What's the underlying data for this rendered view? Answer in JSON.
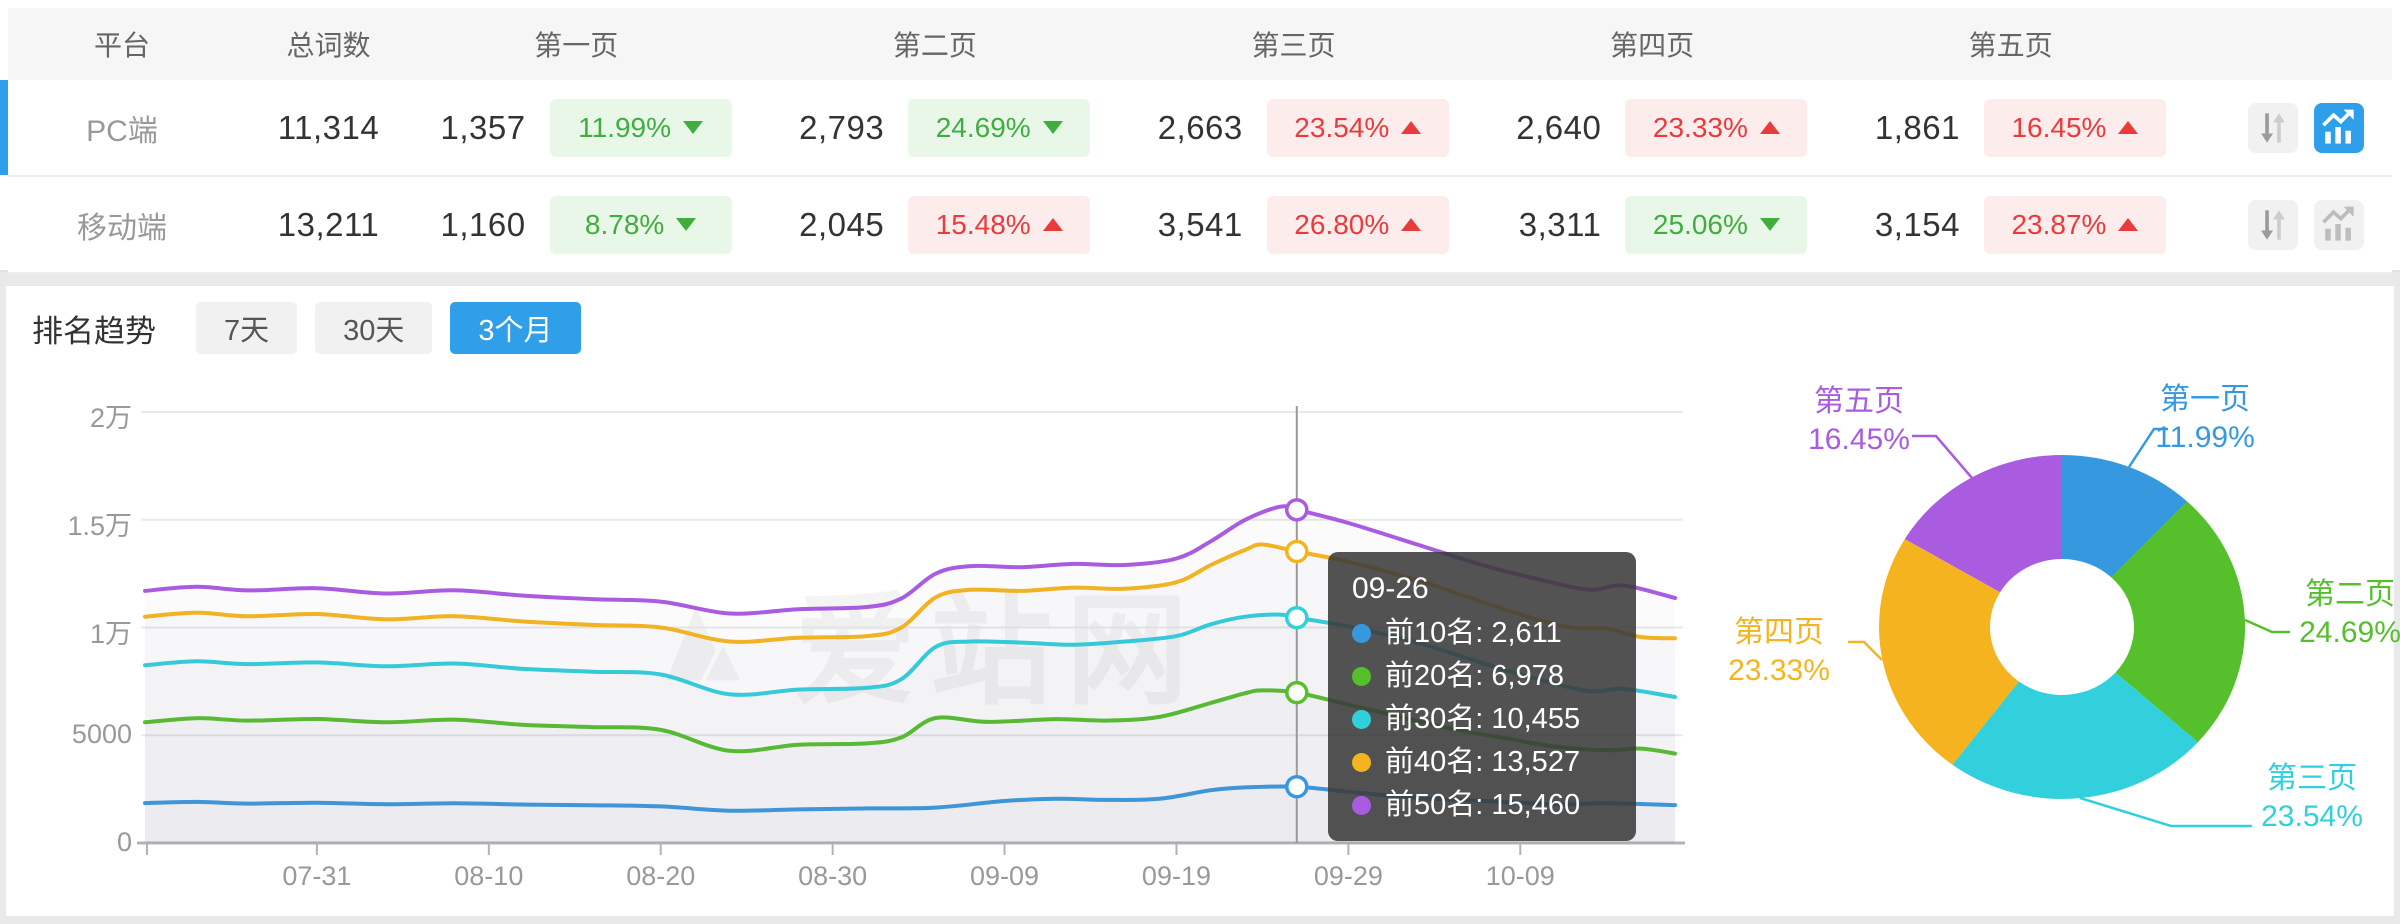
{
  "table": {
    "headers": {
      "platform": "平台",
      "total": "总词数",
      "pages": [
        "第一页",
        "第二页",
        "第三页",
        "第四页",
        "第五页"
      ]
    },
    "rows": [
      {
        "platform": "PC端",
        "total": "11,314",
        "selected": true,
        "pages": [
          {
            "count": "1,357",
            "pct": "11.99%",
            "dir": "down",
            "tone": "green"
          },
          {
            "count": "2,793",
            "pct": "24.69%",
            "dir": "down",
            "tone": "green"
          },
          {
            "count": "2,663",
            "pct": "23.54%",
            "dir": "up",
            "tone": "red"
          },
          {
            "count": "2,640",
            "pct": "23.33%",
            "dir": "up",
            "tone": "red"
          },
          {
            "count": "1,861",
            "pct": "16.45%",
            "dir": "up",
            "tone": "red"
          }
        ],
        "actions": {
          "sort_active": false,
          "chart_active": true
        }
      },
      {
        "platform": "移动端",
        "total": "13,211",
        "selected": false,
        "pages": [
          {
            "count": "1,160",
            "pct": "8.78%",
            "dir": "down",
            "tone": "green"
          },
          {
            "count": "2,045",
            "pct": "15.48%",
            "dir": "up",
            "tone": "red"
          },
          {
            "count": "3,541",
            "pct": "26.80%",
            "dir": "up",
            "tone": "red"
          },
          {
            "count": "3,311",
            "pct": "25.06%",
            "dir": "down",
            "tone": "green"
          },
          {
            "count": "3,154",
            "pct": "23.87%",
            "dir": "up",
            "tone": "red"
          }
        ],
        "actions": {
          "sort_active": false,
          "chart_active": false
        }
      }
    ]
  },
  "trend": {
    "title": "排名趋势",
    "tabs": [
      {
        "label": "7天",
        "active": false
      },
      {
        "label": "30天",
        "active": false
      },
      {
        "label": "3个月",
        "active": true
      }
    ]
  },
  "watermark": "爱站网",
  "tooltip": {
    "date": "09-26",
    "entries": [
      {
        "label": "前10名",
        "value": "2,611"
      },
      {
        "label": "前20名",
        "value": "6,978"
      },
      {
        "label": "前30名",
        "value": "10,455"
      },
      {
        "label": "前40名",
        "value": "13,527"
      },
      {
        "label": "前50名",
        "value": "15,460"
      }
    ]
  },
  "colors": {
    "accent_blue": "#2e9fe8",
    "series": [
      "#3699e0",
      "#55bf2c",
      "#32cfdd",
      "#f5b41f",
      "#a95ce0"
    ],
    "badge_green_text": "#3fae3f",
    "badge_green_bg": "#e9f7e9",
    "badge_red_text": "#e83c3c",
    "badge_red_bg": "#fdecec"
  },
  "chart_data": [
    {
      "type": "line",
      "title": "排名趋势 3个月",
      "x_start": "07-21",
      "days_total": 89,
      "x_ticks": [
        {
          "day": 10,
          "label": "07-31"
        },
        {
          "day": 20,
          "label": "08-10"
        },
        {
          "day": 30,
          "label": "08-20"
        },
        {
          "day": 40,
          "label": "08-30"
        },
        {
          "day": 50,
          "label": "09-09"
        },
        {
          "day": 60,
          "label": "09-19"
        },
        {
          "day": 70,
          "label": "09-29"
        },
        {
          "day": 80,
          "label": "10-09"
        }
      ],
      "ylim": [
        0,
        20000
      ],
      "y_ticks": [
        {
          "value": 0,
          "label": "0"
        },
        {
          "value": 5000,
          "label": "5000"
        },
        {
          "value": 10000,
          "label": "1万"
        },
        {
          "value": 15000,
          "label": "1.5万"
        },
        {
          "value": 20000,
          "label": "2万"
        }
      ],
      "grid": true,
      "highlight": {
        "day": 67,
        "date": "09-26",
        "values": [
          2611,
          6978,
          10455,
          13527,
          15460
        ]
      },
      "series": [
        {
          "name": "前10名",
          "color": "#3699e0",
          "points": [
            [
              0,
              1850
            ],
            [
              3,
              1905
            ],
            [
              6,
              1830
            ],
            [
              10,
              1870
            ],
            [
              14,
              1800
            ],
            [
              18,
              1845
            ],
            [
              22,
              1785
            ],
            [
              26,
              1755
            ],
            [
              30,
              1700
            ],
            [
              34,
              1500
            ],
            [
              38,
              1560
            ],
            [
              42,
              1605
            ],
            [
              46,
              1645
            ],
            [
              50,
              1950
            ],
            [
              53,
              2050
            ],
            [
              56,
              2000
            ],
            [
              59,
              2050
            ],
            [
              62,
              2450
            ],
            [
              64,
              2580
            ],
            [
              67,
              2611
            ],
            [
              70,
              2380
            ],
            [
              74,
              2100
            ],
            [
              78,
              1950
            ],
            [
              82,
              1790
            ],
            [
              85,
              1845
            ],
            [
              89,
              1760
            ]
          ]
        },
        {
          "name": "前20名",
          "color": "#55bf2c",
          "points": [
            [
              0,
              5600
            ],
            [
              3,
              5790
            ],
            [
              6,
              5680
            ],
            [
              10,
              5755
            ],
            [
              14,
              5600
            ],
            [
              18,
              5725
            ],
            [
              22,
              5480
            ],
            [
              26,
              5380
            ],
            [
              30,
              5250
            ],
            [
              34,
              4280
            ],
            [
              38,
              4560
            ],
            [
              42,
              4620
            ],
            [
              44,
              4900
            ],
            [
              46,
              5800
            ],
            [
              49,
              5620
            ],
            [
              53,
              5750
            ],
            [
              56,
              5680
            ],
            [
              59,
              5850
            ],
            [
              62,
              6500
            ],
            [
              64,
              6950
            ],
            [
              65,
              7080
            ],
            [
              67,
              6978
            ],
            [
              70,
              6420
            ],
            [
              73,
              5850
            ],
            [
              76,
              5300
            ],
            [
              79,
              4880
            ],
            [
              82,
              4480
            ],
            [
              85,
              4300
            ],
            [
              87,
              4380
            ],
            [
              89,
              4150
            ]
          ]
        },
        {
          "name": "前30名",
          "color": "#32cfdd",
          "points": [
            [
              0,
              8250
            ],
            [
              3,
              8430
            ],
            [
              6,
              8300
            ],
            [
              10,
              8380
            ],
            [
              14,
              8200
            ],
            [
              18,
              8330
            ],
            [
              22,
              8080
            ],
            [
              26,
              7950
            ],
            [
              30,
              7820
            ],
            [
              34,
              6900
            ],
            [
              38,
              7120
            ],
            [
              42,
              7200
            ],
            [
              44,
              7600
            ],
            [
              46,
              9100
            ],
            [
              48,
              9350
            ],
            [
              51,
              9300
            ],
            [
              54,
              9200
            ],
            [
              57,
              9350
            ],
            [
              60,
              9600
            ],
            [
              62,
              10150
            ],
            [
              64,
              10500
            ],
            [
              66,
              10600
            ],
            [
              67,
              10455
            ],
            [
              70,
              10050
            ],
            [
              74,
              9300
            ],
            [
              78,
              8300
            ],
            [
              81,
              7600
            ],
            [
              84,
              7050
            ],
            [
              86,
              7150
            ],
            [
              89,
              6775
            ]
          ]
        },
        {
          "name": "前40名",
          "color": "#f5b41f",
          "points": [
            [
              0,
              10500
            ],
            [
              3,
              10690
            ],
            [
              6,
              10520
            ],
            [
              10,
              10625
            ],
            [
              14,
              10380
            ],
            [
              18,
              10525
            ],
            [
              22,
              10280
            ],
            [
              26,
              10120
            ],
            [
              30,
              10000
            ],
            [
              34,
              9350
            ],
            [
              38,
              9520
            ],
            [
              42,
              9600
            ],
            [
              44,
              10000
            ],
            [
              46,
              11400
            ],
            [
              48,
              11750
            ],
            [
              51,
              11700
            ],
            [
              54,
              11850
            ],
            [
              57,
              11800
            ],
            [
              60,
              12100
            ],
            [
              62,
              12900
            ],
            [
              64,
              13600
            ],
            [
              65,
              13850
            ],
            [
              67,
              13527
            ],
            [
              70,
              13050
            ],
            [
              74,
              12200
            ],
            [
              77,
              11400
            ],
            [
              80,
              10600
            ],
            [
              83,
              10000
            ],
            [
              85,
              9950
            ],
            [
              87,
              9560
            ],
            [
              89,
              9500
            ]
          ]
        },
        {
          "name": "前50名",
          "color": "#a95ce0",
          "points": [
            [
              0,
              11700
            ],
            [
              3,
              11890
            ],
            [
              6,
              11720
            ],
            [
              10,
              11825
            ],
            [
              14,
              11580
            ],
            [
              18,
              11725
            ],
            [
              22,
              11480
            ],
            [
              26,
              11320
            ],
            [
              30,
              11200
            ],
            [
              34,
              10650
            ],
            [
              38,
              10850
            ],
            [
              42,
              10950
            ],
            [
              44,
              11350
            ],
            [
              46,
              12500
            ],
            [
              48,
              12850
            ],
            [
              51,
              12800
            ],
            [
              54,
              12950
            ],
            [
              57,
              12900
            ],
            [
              60,
              13200
            ],
            [
              62,
              14000
            ],
            [
              64,
              15000
            ],
            [
              66,
              15600
            ],
            [
              67,
              15460
            ],
            [
              70,
              14850
            ],
            [
              74,
              13850
            ],
            [
              78,
              12850
            ],
            [
              81,
              12250
            ],
            [
              84,
              11750
            ],
            [
              86,
              11950
            ],
            [
              89,
              11370
            ]
          ]
        }
      ]
    },
    {
      "type": "pie",
      "donut": true,
      "legend_position": "outside-labels",
      "slices": [
        {
          "label": "第一页",
          "pct": 11.99,
          "color": "#3699e0"
        },
        {
          "label": "第二页",
          "pct": 24.69,
          "color": "#55bf2c"
        },
        {
          "label": "第三页",
          "pct": 23.54,
          "color": "#32cfdd"
        },
        {
          "label": "第四页",
          "pct": 23.33,
          "color": "#f5b41f"
        },
        {
          "label": "第五页",
          "pct": 16.45,
          "color": "#a95ce0"
        }
      ]
    }
  ]
}
